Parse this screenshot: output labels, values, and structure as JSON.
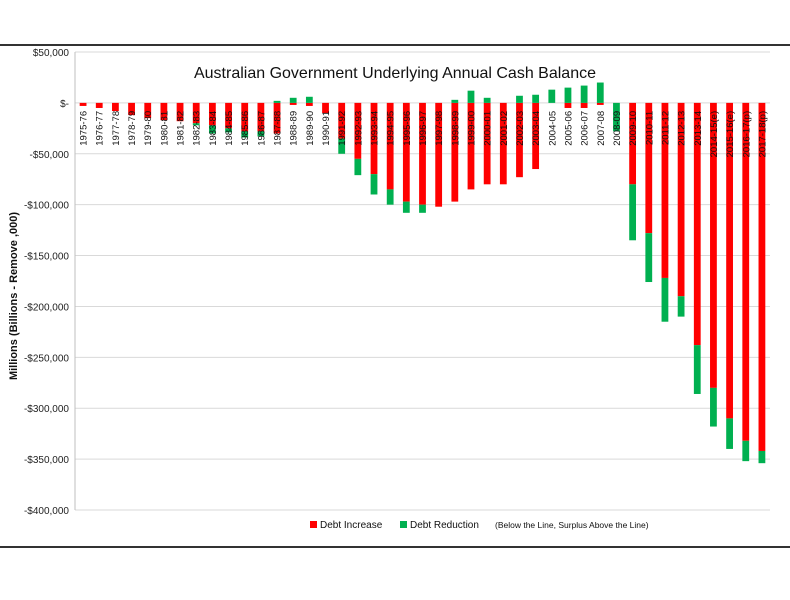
{
  "chart_data": {
    "type": "bar",
    "stacked": true,
    "title": "Australian Government Underlying Annual Cash Balance",
    "ylabel": "Millions (Billions - Remove ,000)",
    "xlabel": "",
    "ylim": [
      -400000,
      50000
    ],
    "yticks": [
      50000,
      0,
      -50000,
      -100000,
      -150000,
      -200000,
      -250000,
      -300000,
      -350000,
      -400000
    ],
    "ytick_labels": [
      "$50,000",
      "$-",
      "-$50,000",
      "-$100,000",
      "-$150,000",
      "-$200,000",
      "-$250,000",
      "-$300,000",
      "-$350,000",
      "-$400,000"
    ],
    "categories": [
      "1975-76",
      "1976-77",
      "1977-78",
      "1978-79",
      "1979-80",
      "1980-81",
      "1981-82",
      "1982-83",
      "1983-84",
      "1984-85",
      "1985-86",
      "1986-87",
      "1987-88",
      "1988-89",
      "1989-90",
      "1990-91",
      "1991-92",
      "1992-93",
      "1993-94",
      "1994-95",
      "1995-96",
      "1996-97",
      "1997-98",
      "1998-99",
      "1999-00",
      "2000-01",
      "2001-02",
      "2002-03",
      "2003-04",
      "2004-05",
      "2005-06",
      "2006-07",
      "2007-08",
      "2008-09",
      "2009-10",
      "2010-11",
      "2011-12",
      "2012-13",
      "2013-14",
      "2014-15(e)",
      "2015-16(e)",
      "2016-17(p)",
      "2017-18(p)"
    ],
    "series": [
      {
        "name": "Debt Increase",
        "color": "#ff0000",
        "values": [
          -3000,
          -5000,
          -8000,
          -12000,
          -15000,
          -17000,
          -18000,
          -20000,
          -22000,
          -25000,
          -28000,
          -28000,
          -30000,
          -2000,
          -3000,
          -10000,
          -35000,
          -55000,
          -70000,
          -85000,
          -97000,
          -100000,
          -102000,
          -97000,
          -85000,
          -80000,
          -80000,
          -73000,
          -65000,
          0,
          -5000,
          -5000,
          -2000,
          0,
          -80000,
          -128000,
          -172000,
          -190000,
          -238000,
          -280000,
          -310000,
          -332000,
          -342000
        ]
      },
      {
        "name": "Debt Reduction",
        "color": "#00b050",
        "values": [
          0,
          0,
          0,
          0,
          0,
          0,
          0,
          -2000,
          -8000,
          -4000,
          -6000,
          -5000,
          2000,
          5000,
          6000,
          0,
          -15000,
          -16000,
          -20000,
          -15000,
          -11000,
          -8000,
          0,
          3000,
          12000,
          5000,
          0,
          7000,
          8000,
          13000,
          15000,
          17000,
          20000,
          -28000,
          -55000,
          -48000,
          -43000,
          -20000,
          -48000,
          -38000,
          -30000,
          -20000,
          -12000
        ]
      }
    ],
    "legend": {
      "entries": [
        "Debt Increase",
        "Debt Reduction"
      ],
      "note": "(Below the Line, Surplus Above the Line)",
      "placement": "bottom-center"
    }
  }
}
